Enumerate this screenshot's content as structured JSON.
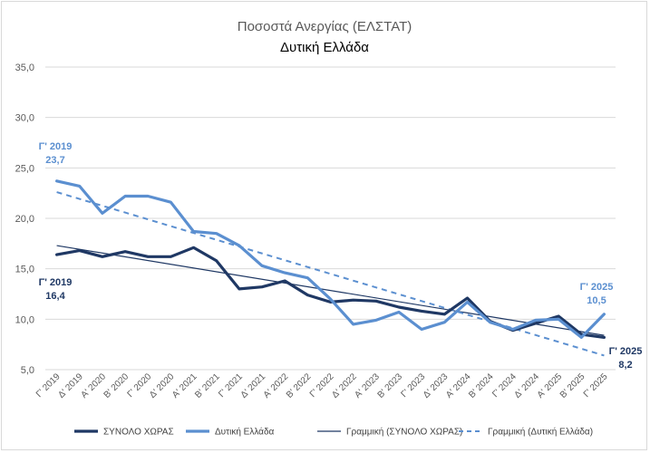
{
  "chart_data": {
    "type": "line",
    "title": "Ποσοστά Ανεργίας (ΕΛΣΤΑΤ)",
    "subtitle": "Δυτική Ελλάδα",
    "ylim": [
      5,
      35
    ],
    "yticks": [
      "5,0",
      "10,0",
      "15,0",
      "20,0",
      "25,0",
      "30,0",
      "35,0"
    ],
    "ytick_values": [
      5,
      10,
      15,
      20,
      25,
      30,
      35
    ],
    "categories": [
      "Γ' 2019",
      "Δ' 2019",
      "Α' 2020",
      "Β' 2020",
      "Γ' 2020",
      "Δ' 2020",
      "Α' 2021",
      "Β' 2021",
      "Γ' 2021",
      "Δ' 2021",
      "Α' 2022",
      "Β' 2022",
      "Γ' 2022",
      "Δ' 2022",
      "Α' 2023",
      "Β' 2023",
      "Γ' 2023",
      "Δ' 2023",
      "Α' 2024",
      "Β' 2024",
      "Γ' 2024",
      "Δ' 2024",
      "Α' 2025",
      "Β' 2025",
      "Γ' 2025"
    ],
    "series": [
      {
        "name": "ΣΥΝΟΛΟ ΧΩΡΑΣ",
        "color": "#1f3864",
        "values": [
          16.4,
          16.8,
          16.2,
          16.7,
          16.2,
          16.2,
          17.1,
          15.8,
          13.0,
          13.2,
          13.8,
          12.4,
          11.7,
          11.9,
          11.8,
          11.2,
          10.8,
          10.5,
          12.1,
          9.8,
          8.9,
          9.6,
          10.3,
          8.5,
          8.2
        ]
      },
      {
        "name": "Δυτική Ελλάδα",
        "color": "#5b8fd0",
        "values": [
          23.7,
          23.2,
          20.5,
          22.2,
          22.2,
          21.6,
          18.7,
          18.5,
          17.3,
          15.3,
          14.6,
          14.1,
          12.0,
          9.5,
          9.9,
          10.7,
          9.0,
          9.7,
          11.7,
          9.7,
          9.0,
          9.9,
          10.0,
          8.2,
          10.5
        ]
      }
    ],
    "trendlines": [
      {
        "name": "Γραμμική (ΣΥΝΟΛΟ ΧΩΡΑΣ)",
        "color": "#1f3864",
        "start": 17.3,
        "end": 8.4,
        "style": "solid"
      },
      {
        "name": "Γραμμική (Δυτική Ελλάδα)",
        "color": "#5b8fd0",
        "start": 22.6,
        "end": 6.4,
        "style": "dashed"
      }
    ],
    "annotations": [
      {
        "label": "Γ' 2019",
        "value": "23,7",
        "color": "#5b8fd0"
      },
      {
        "label": "Γ' 2019",
        "value": "16,4",
        "color": "#1f3864"
      },
      {
        "label": "Γ' 2025",
        "value": "10,5",
        "color": "#5b8fd0"
      },
      {
        "label": "Γ' 2025",
        "value": "8,2",
        "color": "#1f3864"
      }
    ],
    "legend_position": "bottom",
    "grid": true
  }
}
